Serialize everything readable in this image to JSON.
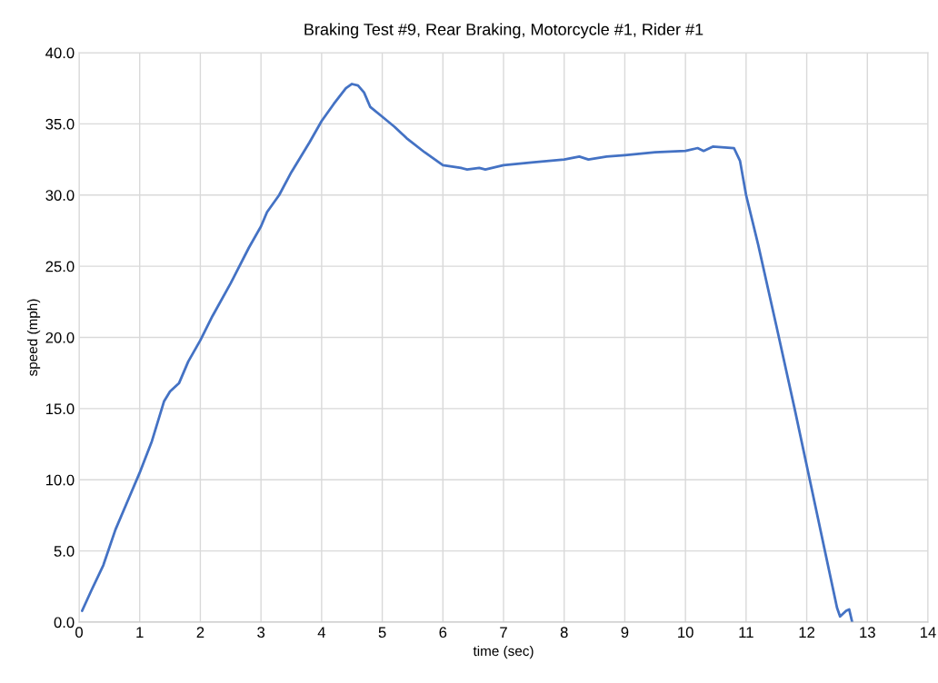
{
  "chart_data": {
    "type": "line",
    "title": "Braking Test #9, Rear Braking, Motorcycle #1, Rider #1",
    "xlabel": "time (sec)",
    "ylabel": "speed (mph)",
    "series": [
      {
        "color": "#4472c4",
        "x": [
          0.05,
          0.2,
          0.4,
          0.6,
          0.8,
          1.0,
          1.2,
          1.4,
          1.5,
          1.65,
          1.8,
          2.0,
          2.2,
          2.5,
          2.8,
          3.0,
          3.1,
          3.3,
          3.5,
          3.8,
          4.0,
          4.2,
          4.4,
          4.5,
          4.6,
          4.7,
          4.8,
          5.0,
          5.2,
          5.4,
          5.7,
          6.0,
          6.3,
          6.4,
          6.6,
          6.7,
          7.0,
          7.5,
          8.0,
          8.25,
          8.4,
          8.7,
          9.0,
          9.5,
          10.0,
          10.2,
          10.3,
          10.45,
          10.8,
          10.9,
          11.0,
          11.2,
          11.5,
          11.8,
          12.0,
          12.3,
          12.5,
          12.55,
          12.65,
          12.7,
          12.75
        ],
        "values": [
          0.8,
          2.2,
          4.0,
          6.5,
          8.5,
          10.5,
          12.7,
          15.5,
          16.2,
          16.8,
          18.3,
          19.8,
          21.5,
          23.8,
          26.3,
          27.8,
          28.8,
          30.0,
          31.6,
          33.7,
          35.2,
          36.4,
          37.5,
          37.8,
          37.7,
          37.2,
          36.2,
          35.5,
          34.8,
          34.0,
          33.0,
          32.1,
          31.9,
          31.8,
          31.9,
          31.8,
          32.1,
          32.3,
          32.5,
          32.7,
          32.5,
          32.7,
          32.8,
          33.0,
          33.1,
          33.3,
          33.1,
          33.4,
          33.3,
          32.4,
          30.0,
          26.5,
          20.8,
          15.0,
          11.0,
          5.0,
          1.0,
          0.4,
          0.8,
          0.9,
          0.0
        ]
      }
    ],
    "xlim": [
      0,
      14
    ],
    "xticks": [
      0,
      1,
      2,
      3,
      4,
      5,
      6,
      7,
      8,
      9,
      10,
      11,
      12,
      13,
      14
    ],
    "ylim": [
      0,
      40
    ],
    "yticks": [
      {
        "value": 0,
        "label": "0.0"
      },
      {
        "value": 5,
        "label": "5.0"
      },
      {
        "value": 10,
        "label": "10.0"
      },
      {
        "value": 15,
        "label": "15.0"
      },
      {
        "value": 20,
        "label": "20.0"
      },
      {
        "value": 25,
        "label": "25.0"
      },
      {
        "value": 30,
        "label": "30.0"
      },
      {
        "value": 35,
        "label": "35.0"
      },
      {
        "value": 40,
        "label": "40.0"
      }
    ],
    "grid": true
  }
}
